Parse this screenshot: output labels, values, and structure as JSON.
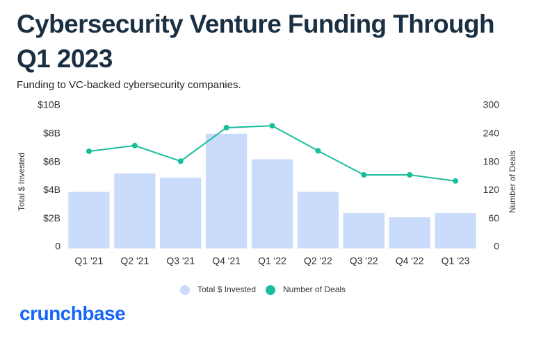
{
  "chart_data": {
    "type": "bar",
    "title": "Cybersecurity Venture Funding Through Q1 2023",
    "subtitle": "Funding to VC-backed cybersecurity companies.",
    "categories": [
      "Q1 '21",
      "Q2 '21",
      "Q3 '21",
      "Q4 '21",
      "Q1 '22",
      "Q2 '22",
      "Q3 '22",
      "Q4 '22",
      "Q1 '23"
    ],
    "series": [
      {
        "name": "Total $ Invested",
        "type": "bar",
        "color": "#cadbfb",
        "values": [
          3.9,
          5.2,
          4.9,
          8.0,
          6.2,
          3.9,
          2.4,
          2.1,
          2.4
        ]
      },
      {
        "name": "Number of Deals",
        "type": "line",
        "axis": "y2",
        "color": "#19bd9c",
        "values": [
          203,
          215,
          182,
          253,
          257,
          204,
          153,
          153,
          140
        ]
      }
    ],
    "ylabel": "Total $ Invested",
    "y2label": "Number of Deals",
    "ylim": [
      0,
      10
    ],
    "yticks": [
      0,
      {
        "value": 2,
        "label": "$2B"
      },
      {
        "value": 4,
        "label": "$4B"
      },
      {
        "value": 6,
        "label": "$6B"
      },
      {
        "value": 8,
        "label": "$8B"
      },
      {
        "value": 10,
        "label": "$10B"
      }
    ],
    "y2lim": [
      0,
      300
    ],
    "y2ticks": [
      0,
      60,
      120,
      180,
      240,
      300
    ],
    "grid": false,
    "legend": "bottom",
    "source": "crunchbase"
  }
}
